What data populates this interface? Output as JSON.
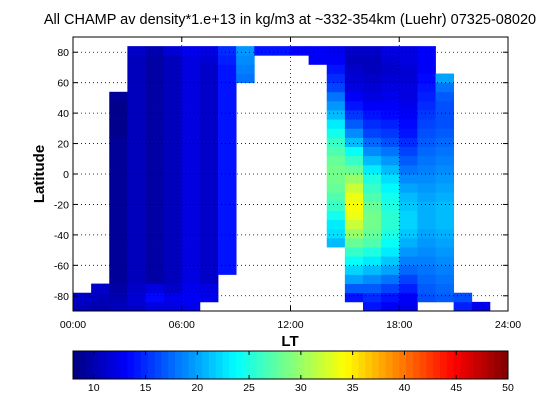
{
  "chart_data": {
    "type": "heatmap",
    "title": "All CHAMP av density*1.e+13 in kg/m3 at ~332-354km (Luehr) 07325-08020",
    "xlabel": "LT",
    "ylabel": "Latitude",
    "xlim": [
      0,
      24
    ],
    "ylim": [
      -90,
      90
    ],
    "x_ticks": [
      "00:00",
      "06:00",
      "12:00",
      "18:00",
      "24:00"
    ],
    "y_ticks": [
      "-80",
      "-60",
      "-40",
      "-20",
      "0",
      "20",
      "40",
      "60",
      "80"
    ],
    "grid": true,
    "colorbar": {
      "colormap": "jet",
      "range": [
        8,
        50
      ],
      "orientation": "horizontal",
      "ticks": [
        "10",
        "15",
        "20",
        "25",
        "30",
        "35",
        "40",
        "45",
        "50"
      ]
    },
    "bin_width_hours": 1,
    "bin_height_deg": 6,
    "lt_bins": [
      {
        "lt_start": 0,
        "lat_min": -90,
        "lat_max": -78,
        "values": [
          10.5,
          11.0
        ]
      },
      {
        "lt_start": 1,
        "lat_min": -90,
        "lat_max": -72,
        "values": [
          10.0,
          10.5,
          11.0
        ]
      },
      {
        "lt_start": 2,
        "lat_min": -90,
        "lat_max": 54,
        "values": [
          10.5,
          10.0,
          9.5,
          9.0,
          9.0,
          9.0,
          9.0,
          9.0,
          9.0,
          9.0,
          9.0,
          9.0,
          9.0,
          9.0,
          9.0,
          9.0,
          9.0,
          9.0,
          9.0,
          8.5,
          8.5,
          8.5,
          8.5,
          9.0
        ]
      },
      {
        "lt_start": 3,
        "lat_min": -90,
        "lat_max": 84,
        "values": [
          11.0,
          11.5,
          11.0,
          10.5,
          10.5,
          10.5,
          10.5,
          10.5,
          10.5,
          10.5,
          10.5,
          10.5,
          10.5,
          10.5,
          10.5,
          10.5,
          10.5,
          10.5,
          10.5,
          10.5,
          10.5,
          10.5,
          10.5,
          10.5,
          10.5,
          10.5,
          10.5,
          10.5,
          11.0
        ]
      },
      {
        "lt_start": 4,
        "lat_min": -90,
        "lat_max": 84,
        "values": [
          12.0,
          13.5,
          12.0,
          9.5,
          9.5,
          9.5,
          9.5,
          9.5,
          9.5,
          9.5,
          9.5,
          9.5,
          9.5,
          9.5,
          9.5,
          9.5,
          9.5,
          9.5,
          9.5,
          9.5,
          9.5,
          9.5,
          9.5,
          9.5,
          9.5,
          9.5,
          9.5,
          9.5,
          10.0
        ]
      },
      {
        "lt_start": 5,
        "lat_min": -90,
        "lat_max": 84,
        "values": [
          12.0,
          12.5,
          11.0,
          10.5,
          10.5,
          10.5,
          10.5,
          10.5,
          10.5,
          10.5,
          10.5,
          10.5,
          10.5,
          10.5,
          10.5,
          10.5,
          10.5,
          10.5,
          10.5,
          10.5,
          10.5,
          10.5,
          10.5,
          10.5,
          10.5,
          10.5,
          10.5,
          10.5,
          11.5
        ]
      },
      {
        "lt_start": 6,
        "lat_min": -90,
        "lat_max": 84,
        "values": [
          12.5,
          13.0,
          12.5,
          12.0,
          12.0,
          12.0,
          12.0,
          12.0,
          12.0,
          12.0,
          12.0,
          12.0,
          12.0,
          12.0,
          12.0,
          12.0,
          12.0,
          12.0,
          12.0,
          12.0,
          12.0,
          12.0,
          12.0,
          12.0,
          12.0,
          12.0,
          12.0,
          12.0,
          12.5
        ]
      },
      {
        "lt_start": 7,
        "lat_min": -84,
        "lat_max": 84,
        "values": [
          12.5,
          12.0,
          11.0,
          11.0,
          11.0,
          11.0,
          11.0,
          11.0,
          11.0,
          11.0,
          11.0,
          11.0,
          11.0,
          11.0,
          11.0,
          11.0,
          11.0,
          11.0,
          11.0,
          11.0,
          11.0,
          11.0,
          11.0,
          11.0,
          11.0,
          11.0,
          11.5,
          12.0
        ]
      },
      {
        "lt_start": 8,
        "lat_min": -66,
        "lat_max": 84,
        "values": [
          14.0,
          14.0,
          14.0,
          14.0,
          14.0,
          14.0,
          14.0,
          14.0,
          14.0,
          14.0,
          14.0,
          14.0,
          14.0,
          14.0,
          14.0,
          14.0,
          14.0,
          14.0,
          14.0,
          14.0,
          14.0,
          14.0,
          14.0,
          14.5,
          15.0
        ]
      },
      {
        "lt_start": 9,
        "lat_min": 60,
        "lat_max": 84,
        "values": [
          18.0,
          18.5,
          19.0,
          19.5
        ]
      },
      {
        "lt_start": 10,
        "lat_min": 78,
        "lat_max": 84,
        "values": [
          14.0
        ]
      },
      {
        "lt_start": 11,
        "lat_min": 78,
        "lat_max": 84,
        "values": [
          14.0
        ]
      },
      {
        "lt_start": 12,
        "lat_min": 78,
        "lat_max": 84,
        "values": [
          13.0
        ]
      },
      {
        "lt_start": 13,
        "lat_min": 72,
        "lat_max": 84,
        "values": [
          13.0,
          13.0
        ]
      },
      {
        "lt_start": 14,
        "lat_min": -48,
        "lat_max": 84,
        "values": [
          21.0,
          22.5,
          23.0,
          24.5,
          26.0,
          27.0,
          28.0,
          28.5,
          28.5,
          28.0,
          27.0,
          26.0,
          24.5,
          23.0,
          21.0,
          19.5,
          18.0,
          16.0,
          15.0,
          14.0,
          13.0,
          12.5
        ]
      },
      {
        "lt_start": 15,
        "lat_min": -84,
        "lat_max": 84,
        "values": [
          14.0,
          17.0,
          20.0,
          22.0,
          24.0,
          26.0,
          28.0,
          30.0,
          32.0,
          33.5,
          34.0,
          33.5,
          32.0,
          30.0,
          28.0,
          26.0,
          24.0,
          21.0,
          19.0,
          17.0,
          15.5,
          14.0,
          13.0,
          12.0,
          11.5,
          11.0,
          10.5,
          11.0
        ]
      },
      {
        "lt_start": 16,
        "lat_min": -90,
        "lat_max": 84,
        "values": [
          14.0,
          15.0,
          17.0,
          19.0,
          21.0,
          23.0,
          25.0,
          27.0,
          28.0,
          28.5,
          28.5,
          28.0,
          27.0,
          26.0,
          25.0,
          23.0,
          21.0,
          19.0,
          17.5,
          16.0,
          15.0,
          14.0,
          13.0,
          12.0,
          11.5,
          11.0,
          10.5,
          10.5,
          11.0
        ]
      },
      {
        "lt_start": 17,
        "lat_min": -90,
        "lat_max": 84,
        "values": [
          13.0,
          14.0,
          16.0,
          18.0,
          20.0,
          21.5,
          23.0,
          24.0,
          25.0,
          25.5,
          25.5,
          25.0,
          24.5,
          23.5,
          22.5,
          21.0,
          19.5,
          18.0,
          16.5,
          15.5,
          14.5,
          13.5,
          13.0,
          12.5,
          12.0,
          11.5,
          11.0,
          11.5,
          12.0
        ]
      },
      {
        "lt_start": 18,
        "lat_min": -90,
        "lat_max": 84,
        "values": [
          12.5,
          13.0,
          14.5,
          16.0,
          17.5,
          18.5,
          19.5,
          20.5,
          21.5,
          22.0,
          22.0,
          21.5,
          21.0,
          20.0,
          19.0,
          18.0,
          17.0,
          16.0,
          15.0,
          14.0,
          13.5,
          13.0,
          12.5,
          12.0,
          12.0,
          11.5,
          11.5,
          12.0,
          12.0
        ]
      },
      {
        "lt_start": 19,
        "lat_min": -84,
        "lat_max": 84,
        "values": [
          16.5,
          17.0,
          17.5,
          18.0,
          18.5,
          19.0,
          19.5,
          20.0,
          20.5,
          20.5,
          20.5,
          20.0,
          19.5,
          19.0,
          18.5,
          18.0,
          17.5,
          17.0,
          16.5,
          16.0,
          15.5,
          15.0,
          14.5,
          14.0,
          13.5,
          13.0,
          13.0,
          13.0
        ]
      },
      {
        "lt_start": 20,
        "lat_min": -84,
        "lat_max": 66,
        "values": [
          17.0,
          17.5,
          18.0,
          18.5,
          19.0,
          19.5,
          20.0,
          20.5,
          21.0,
          21.0,
          21.0,
          20.5,
          20.0,
          19.5,
          19.0,
          18.5,
          18.0,
          17.5,
          17.0,
          16.5,
          16.5,
          16.5,
          17.0,
          18.0,
          20.0
        ]
      },
      {
        "lt_start": 21,
        "lat_min": -90,
        "lat_max": -78,
        "values": [
          14.5,
          16.5
        ]
      },
      {
        "lt_start": 22,
        "lat_min": -90,
        "lat_max": -84,
        "values": [
          12.5
        ]
      }
    ]
  }
}
